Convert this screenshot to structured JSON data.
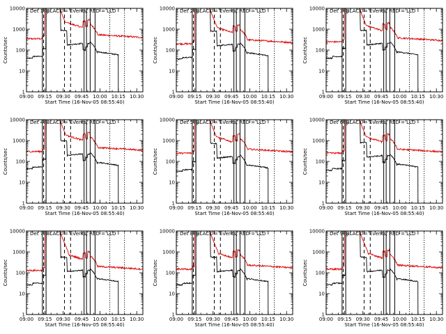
{
  "chart_data": {
    "type": "line",
    "layout": "3x3 grid",
    "xlabel": "Start Time (16-Nov-05 08:55:40)",
    "ylabel": "Counts/sec",
    "x_tick_labels": [
      "09:00",
      "09:15",
      "09:30",
      "09:45",
      "10:00",
      "10:15",
      "10:30"
    ],
    "x_tick_minutes": [
      0,
      15,
      30,
      45,
      60,
      75,
      90
    ],
    "xlim_minutes_after_0900": [
      0,
      95
    ],
    "ylog": true,
    "ylim": [
      1,
      10000
    ],
    "y_tick_labels": [
      "1",
      "10",
      "100",
      "1000",
      "10000"
    ],
    "series_colors": {
      "events": "#000000",
      "lld": "#dd0000"
    },
    "panels": [
      {
        "title": "Det 1: BLACK = Events, RED = LLD",
        "flags": "P",
        "lld_level": 350,
        "events_plateau": 55,
        "events_end": 75,
        "lld_end": 95
      },
      {
        "title": "Det 2: BLACK = Events, RED = LLD",
        "flags": "P",
        "lld_level": 200,
        "events_plateau": 50,
        "events_end": 75,
        "lld_end": 95
      },
      {
        "title": "Det 3: BLACK = Events, RED = LLD",
        "flags": "P",
        "lld_level": 250,
        "events_plateau": 55,
        "events_end": 75,
        "lld_end": 95
      },
      {
        "title": "Det 4: BLACK = Events, RED = LLD",
        "flags": "",
        "lld_level": 300,
        "events_plateau": 60,
        "events_end": 75,
        "lld_end": 95
      },
      {
        "title": "Det 5: BLACK = Events, RED = LLD",
        "flags": "P",
        "lld_level": 250,
        "events_plateau": 45,
        "events_end": 75,
        "lld_end": 95
      },
      {
        "title": "Det 6: BLACK = Events, RED = LLD",
        "flags": "P",
        "lld_level": 250,
        "events_plateau": 50,
        "events_end": 75,
        "lld_end": 95
      },
      {
        "title": "Det 7: BLACK = Events, RED = LLD",
        "flags": "",
        "lld_level": 130,
        "events_plateau": 35,
        "events_end": 75,
        "lld_end": 95
      },
      {
        "title": "Det 8: BLACK = Events, RED = LLD",
        "flags": "P",
        "lld_level": 150,
        "events_plateau": 35,
        "events_end": 75,
        "lld_end": 95
      },
      {
        "title": "Det 9: BLACK = Events, RED = LLD",
        "flags": "P",
        "lld_level": 150,
        "events_plateau": 35,
        "events_end": 75,
        "lld_end": 95
      }
    ],
    "markers_minutes": {
      "solid": [
        13,
        16,
        47,
        49,
        52,
        56
      ],
      "dashed": [
        14,
        31,
        36
      ],
      "dotted": [
        68,
        80
      ]
    }
  }
}
